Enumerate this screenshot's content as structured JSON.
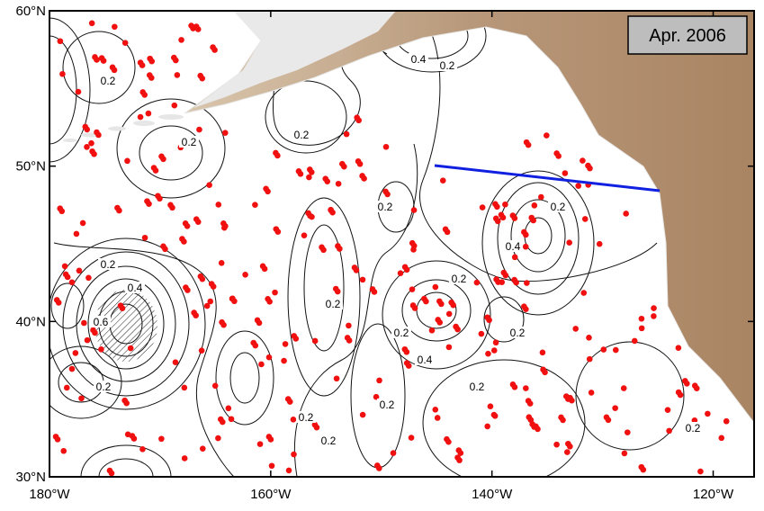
{
  "title": "Apr. 2006",
  "map": {
    "lonlim": [
      -180,
      -116.3
    ],
    "latlim": [
      30,
      60
    ],
    "lat_ticks": [
      {
        "value": 60,
        "label": "60°N"
      },
      {
        "value": 50,
        "label": "50°N"
      },
      {
        "value": 40,
        "label": "40°N"
      },
      {
        "value": 30,
        "label": "30°N"
      }
    ],
    "lon_ticks": [
      {
        "value": -180,
        "label": "180°W"
      },
      {
        "value": -160,
        "label": "160°W"
      },
      {
        "value": -140,
        "label": "140°W"
      },
      {
        "value": -120,
        "label": "120°W"
      }
    ],
    "contour_labels": [
      "0.2",
      "0.2",
      "0.4",
      "0.2",
      "0.2",
      "0.2",
      "0.4",
      "0.6",
      "0.2",
      "0.2",
      "0.2",
      "0.2",
      "0.2",
      "0.4",
      "0.2",
      "0.2",
      "0.2",
      "0.4",
      "0.2",
      "0.2",
      "0.2",
      "0.2"
    ]
  }
}
